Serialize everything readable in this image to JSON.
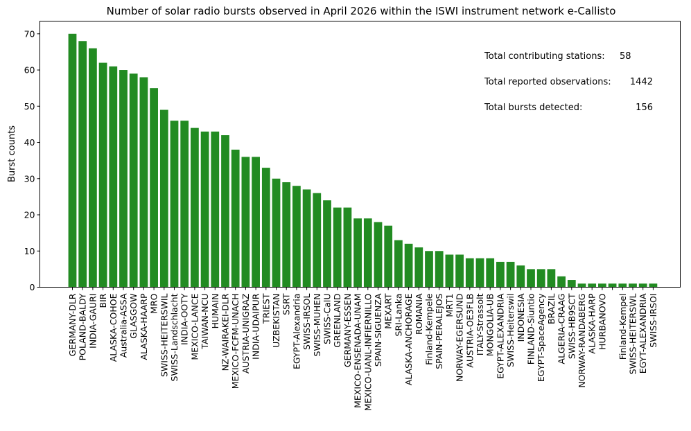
{
  "chart_data": {
    "type": "bar",
    "title": "Number of solar radio bursts observed in April 2026 within the ISWI instrument network e-Callisto",
    "ylabel": "Burst counts",
    "xlabel": "",
    "ylim": [
      0,
      73.5
    ],
    "yticks": [
      0,
      10,
      20,
      30,
      40,
      50,
      60,
      70
    ],
    "bar_color": "#228b22",
    "grid": false,
    "categories": [
      "GERMANY-DLR",
      "POLAND-BALDY",
      "INDIA-GAURI",
      "BIR",
      "ALASKA-COHOE",
      "Australia-ASSA",
      "GLASGOW",
      "ALASKA-HAARP",
      "MRO",
      "SWISS-HEITERSWIL",
      "SWISS-Landschlacht",
      "INDIA-OOTY",
      "MEXICO-LANCE",
      "TAIWAN-NCU",
      "HUMAIN",
      "NZ-WAIRAKEI-DLR",
      "MEXICO-FCFM-UNACH",
      "AUSTRIA-UNIGRAZ",
      "INDIA-UDAIPUR",
      "TRIEST",
      "UZBEKISTAN",
      "SSRT",
      "EGYPT-Alexandria",
      "SWISS-IRSOL",
      "SWISS-MUHEN",
      "SWISS-CalU",
      "GREENLAND",
      "GERMANY-ESSEN",
      "MEXICO-ENSENADA-UNAM",
      "MEXICO-UANL-INFIERNILLO",
      "SPAIN-SIGUENZA",
      "MEXART",
      "SRI-Lanka",
      "ALASKA-ANCHORAGE",
      "ROMANIA",
      "Finland-Kempele",
      "SPAIN-PERALEJOS",
      "MRT1",
      "NORWAY-EGERSUND",
      "AUSTRIA-OE3FLB",
      "ITALY-Strassolt",
      "MONGOLIA-UB",
      "EGYPT-ALEXANDRIA",
      "SWISS-Heiterswil",
      "INDONESIA",
      "FINLAND-Siuntio",
      "EGYPT-SpaceAgency",
      "BRAZIL",
      "ALGERIA-CRAAG",
      "SWISS-HB9SCT",
      "NORWAY-RANDABERG",
      "ALASKA-HARP",
      "HURBANOVO",
      "",
      "Finland-Kempel",
      "SWISS-HEITERSWL",
      "EGYT-ALEXANDRIA",
      "SWISS-IRSOI"
    ],
    "values": [
      70,
      68,
      66,
      62,
      61,
      60,
      59,
      58,
      55,
      49,
      46,
      46,
      44,
      43,
      43,
      42,
      38,
      36,
      36,
      33,
      30,
      29,
      28,
      27,
      26,
      24,
      22,
      22,
      19,
      19,
      18,
      17,
      13,
      12,
      11,
      10,
      10,
      9,
      9,
      8,
      8,
      8,
      7,
      7,
      6,
      5,
      5,
      5,
      3,
      2,
      1,
      1,
      1,
      1,
      1,
      1,
      1,
      1
    ],
    "annotations": [
      {
        "label": "Total contributing stations:",
        "value": "58"
      },
      {
        "label": "Total reported observations:",
        "value": "1442"
      },
      {
        "label": "Total bursts detected:",
        "value": "156"
      }
    ]
  }
}
